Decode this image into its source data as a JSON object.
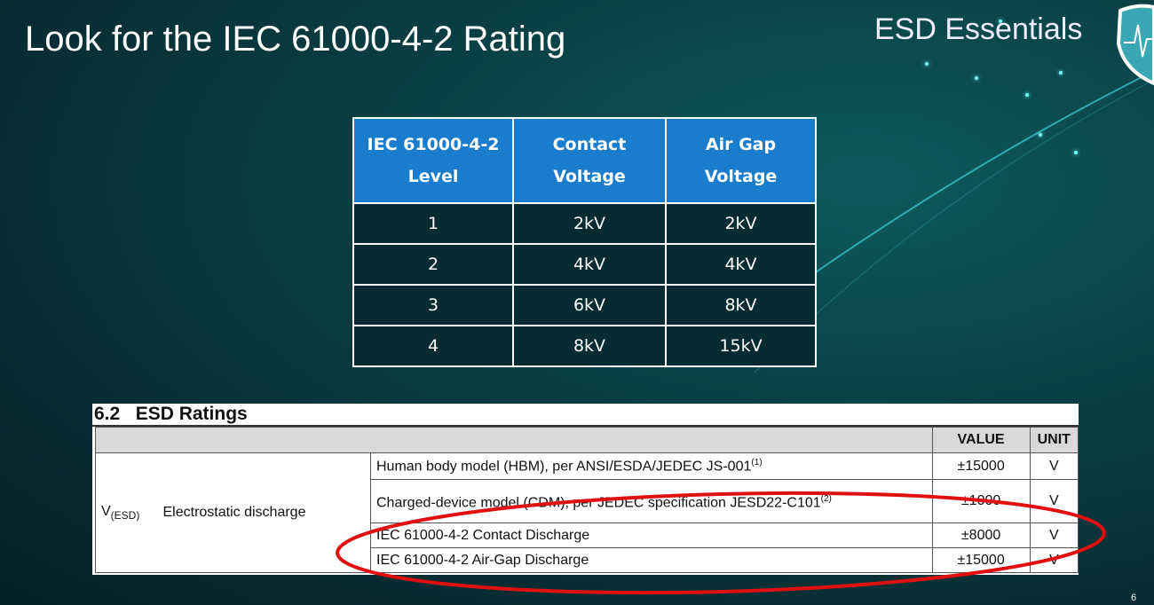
{
  "slide": {
    "title": "Look for the IEC 61000-4-2 Rating",
    "brand": "ESD Essentials",
    "page_number": "6",
    "accent": "#1a7ccc",
    "highlight_color": "#e01010"
  },
  "level_table": {
    "headers": [
      "IEC 61000-4-2 Level",
      "Contact Voltage",
      "Air Gap Voltage"
    ],
    "rows": [
      [
        "1",
        "2kV",
        "2kV"
      ],
      [
        "2",
        "4kV",
        "4kV"
      ],
      [
        "3",
        "6kV",
        "8kV"
      ],
      [
        "4",
        "8kV",
        "15kV"
      ]
    ]
  },
  "esd_ratings": {
    "section_title": "6.2   ESD Ratings",
    "headers": {
      "value": "VALUE",
      "unit": "UNIT"
    },
    "symbol": "V",
    "symbol_sub": "(ESD)",
    "parameter": "Electrostatic discharge",
    "rows": [
      {
        "condition": "Human body model (HBM), per ANSI/ESDA/JEDEC JS-001",
        "note": "(1)",
        "value": "±15000",
        "unit": "V"
      },
      {
        "condition": "Charged-device model (CDM), per JEDEC specification JESD22-C101",
        "note": "(2)",
        "value": "±1000",
        "unit": "V"
      },
      {
        "condition": "IEC 61000-4-2 Contact Discharge",
        "value": "±8000",
        "unit": "V"
      },
      {
        "condition": "IEC 61000-4-2 Air-Gap Discharge",
        "value": "±15000",
        "unit": "V"
      }
    ]
  }
}
